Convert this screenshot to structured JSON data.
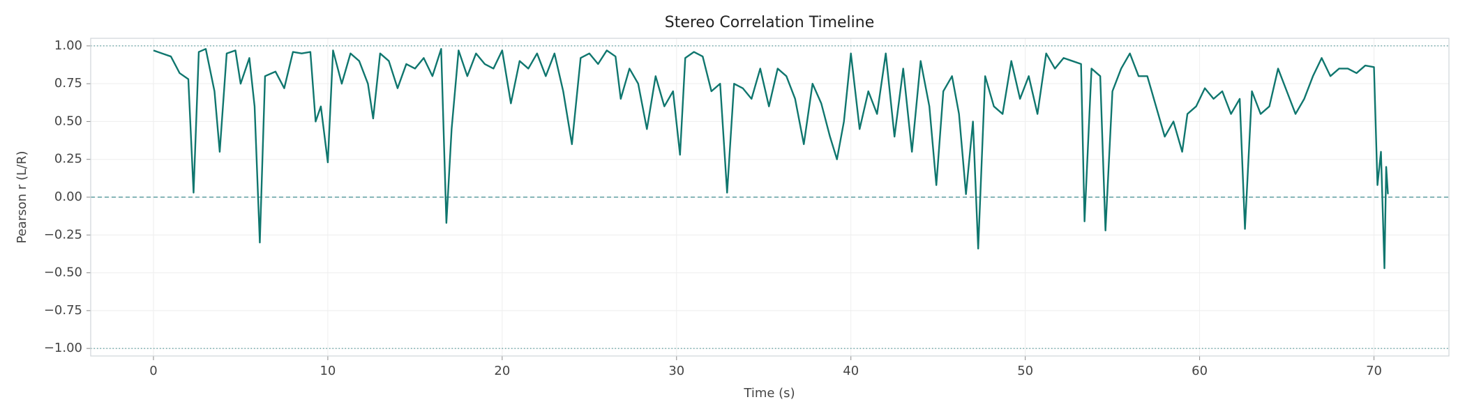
{
  "chart_data": {
    "type": "line",
    "title": "Stereo Correlation Timeline",
    "xlabel": "Time (s)",
    "ylabel": "Pearson r (L/R)",
    "xlim": [
      -3.6,
      74.3
    ],
    "ylim": [
      -1.05,
      1.05
    ],
    "xticks": [
      0,
      10,
      20,
      30,
      40,
      50,
      60,
      70
    ],
    "yticks": [
      {
        "value": 1,
        "label": "1.00"
      },
      {
        "value": 0.75,
        "label": "0.75"
      },
      {
        "value": 0.5,
        "label": "0.50"
      },
      {
        "value": 0.25,
        "label": "0.25"
      },
      {
        "value": 0,
        "label": "0.00"
      },
      {
        "value": -0.25,
        "label": "−0.25"
      },
      {
        "value": -0.5,
        "label": "−0.50"
      },
      {
        "value": -0.75,
        "label": "−0.75"
      },
      {
        "value": -1,
        "label": "−1.00"
      }
    ],
    "grid": true,
    "reference_lines": [
      {
        "value": 1,
        "style": "dotted"
      },
      {
        "value": -1,
        "style": "dotted"
      },
      {
        "value": 0,
        "style": "dashed"
      }
    ],
    "reference_color": "#5f9ea0",
    "color": "#0f766e",
    "x": [
      0,
      0.5,
      1,
      1.5,
      2,
      2.3,
      2.6,
      3,
      3.5,
      3.8,
      4.2,
      4.7,
      5,
      5.5,
      5.8,
      6.1,
      6.4,
      7,
      7.5,
      8,
      8.5,
      9,
      9.3,
      9.6,
      10,
      10.3,
      10.8,
      11.3,
      11.8,
      12.3,
      12.6,
      13,
      13.5,
      14,
      14.5,
      15,
      15.5,
      16,
      16.5,
      16.8,
      17.1,
      17.5,
      18,
      18.5,
      19,
      19.5,
      20,
      20.5,
      21,
      21.5,
      22,
      22.5,
      23,
      23.5,
      24,
      24.5,
      25,
      25.5,
      26,
      26.5,
      26.8,
      27.3,
      27.8,
      28.3,
      28.8,
      29.3,
      29.8,
      30.2,
      30.5,
      31,
      31.5,
      32,
      32.5,
      32.9,
      33.3,
      33.8,
      34.3,
      34.8,
      35.3,
      35.8,
      36.3,
      36.8,
      37.3,
      37.8,
      38.3,
      38.8,
      39.2,
      39.6,
      40,
      40.5,
      41,
      41.5,
      42,
      42.5,
      43,
      43.5,
      44,
      44.5,
      44.9,
      45.3,
      45.8,
      46.2,
      46.6,
      47,
      47.3,
      47.7,
      48.2,
      48.7,
      49.2,
      49.7,
      50.2,
      50.7,
      51.2,
      51.7,
      52.2,
      52.7,
      53.2,
      53.4,
      53.8,
      54.3,
      54.6,
      55,
      55.5,
      56,
      56.5,
      57,
      57.5,
      58,
      58.5,
      59,
      59.3,
      59.8,
      60.3,
      60.8,
      61.3,
      61.8,
      62.3,
      62.6,
      63,
      63.5,
      64,
      64.5,
      65,
      65.5,
      66,
      66.5,
      67,
      67.5,
      68,
      68.5,
      69,
      69.5,
      70,
      70.2,
      70.4,
      70.6,
      70.7,
      70.8
    ],
    "values": [
      0.97,
      0.95,
      0.93,
      0.82,
      0.78,
      0.03,
      0.96,
      0.98,
      0.7,
      0.3,
      0.95,
      0.97,
      0.75,
      0.92,
      0.6,
      -0.3,
      0.8,
      0.83,
      0.72,
      0.96,
      0.95,
      0.96,
      0.5,
      0.6,
      0.23,
      0.97,
      0.75,
      0.95,
      0.9,
      0.75,
      0.52,
      0.95,
      0.9,
      0.72,
      0.88,
      0.85,
      0.92,
      0.8,
      0.98,
      -0.17,
      0.45,
      0.97,
      0.8,
      0.95,
      0.88,
      0.85,
      0.97,
      0.62,
      0.9,
      0.85,
      0.95,
      0.8,
      0.95,
      0.7,
      0.35,
      0.92,
      0.95,
      0.88,
      0.97,
      0.93,
      0.65,
      0.85,
      0.75,
      0.45,
      0.8,
      0.6,
      0.7,
      0.28,
      0.92,
      0.96,
      0.93,
      0.7,
      0.75,
      0.03,
      0.75,
      0.72,
      0.65,
      0.85,
      0.6,
      0.85,
      0.8,
      0.65,
      0.35,
      0.75,
      0.62,
      0.4,
      0.25,
      0.5,
      0.95,
      0.45,
      0.7,
      0.55,
      0.95,
      0.4,
      0.85,
      0.3,
      0.9,
      0.6,
      0.08,
      0.7,
      0.8,
      0.55,
      0.02,
      0.5,
      -0.34,
      0.8,
      0.6,
      0.55,
      0.9,
      0.65,
      0.8,
      0.55,
      0.95,
      0.85,
      0.92,
      0.9,
      0.88,
      -0.16,
      0.85,
      0.8,
      -0.22,
      0.7,
      0.85,
      0.95,
      0.8,
      0.8,
      0.6,
      0.4,
      0.5,
      0.3,
      0.55,
      0.6,
      0.72,
      0.65,
      0.7,
      0.55,
      0.65,
      -0.21,
      0.7,
      0.55,
      0.6,
      0.85,
      0.7,
      0.55,
      0.65,
      0.8,
      0.92,
      0.8,
      0.85,
      0.85,
      0.82,
      0.87,
      0.86,
      0.08,
      0.3,
      -0.47,
      0.2,
      0.02
    ]
  }
}
